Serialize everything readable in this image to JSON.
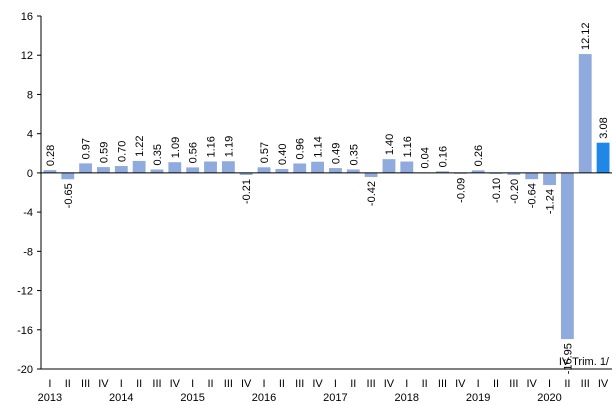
{
  "chart_data": {
    "type": "bar",
    "title": "",
    "xlabel": "",
    "ylabel": "",
    "ylim": [
      -20,
      16
    ],
    "yticks": [
      -20,
      -16,
      -12,
      -8,
      -4,
      0,
      4,
      8,
      12,
      16
    ],
    "grid": false,
    "note": "IV Trim. 1/",
    "colors": {
      "bar": "#8faadc",
      "highlight": "#1f87e5",
      "axis": "#000000"
    },
    "categories": [
      "I",
      "II",
      "III",
      "IV",
      "I",
      "II",
      "III",
      "IV",
      "I",
      "II",
      "III",
      "IV",
      "I",
      "II",
      "III",
      "IV",
      "I",
      "II",
      "III",
      "IV",
      "I",
      "II",
      "III",
      "IV",
      "I",
      "II",
      "III",
      "IV",
      "I",
      "II",
      "III",
      "IV"
    ],
    "years": [
      {
        "label": "2013",
        "start": 0
      },
      {
        "label": "2014",
        "start": 4
      },
      {
        "label": "2015",
        "start": 8
      },
      {
        "label": "2016",
        "start": 12
      },
      {
        "label": "2017",
        "start": 16
      },
      {
        "label": "2018",
        "start": 20
      },
      {
        "label": "2019",
        "start": 24
      },
      {
        "label": "2020",
        "start": 28
      }
    ],
    "values": [
      0.28,
      -0.65,
      0.97,
      0.59,
      0.7,
      1.22,
      0.35,
      1.09,
      0.56,
      1.16,
      1.19,
      -0.21,
      0.57,
      0.4,
      0.96,
      1.14,
      0.49,
      0.35,
      -0.42,
      1.4,
      1.16,
      0.04,
      0.16,
      -0.09,
      0.26,
      -0.1,
      -0.2,
      -0.64,
      -1.24,
      -16.95,
      12.12,
      3.08
    ],
    "data_labels": [
      "0.28",
      "-0.65",
      "0.97",
      "0.59",
      "0.70",
      "1.22",
      "0.35",
      "1.09",
      "0.56",
      "1.16",
      "1.19",
      "-0.21",
      "0.57",
      "0.40",
      "0.96",
      "1.14",
      "0.49",
      "0.35",
      "-0.42",
      "1.40",
      "1.16",
      "0.04",
      "0.16",
      "-0.09",
      "0.26",
      "-0.10",
      "-0.20",
      "-0.64",
      "-1.24",
      "-16.95",
      "12.12",
      "3.08"
    ],
    "highlight_index": 31
  }
}
